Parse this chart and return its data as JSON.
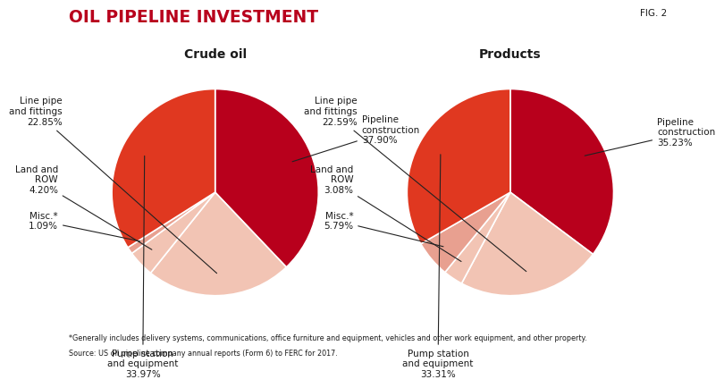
{
  "title": "OIL PIPELINE INVESTMENT",
  "fig_label": "FIG. 2",
  "crude_oil_title": "Crude oil",
  "products_title": "Products",
  "crude_oil": {
    "values": [
      37.9,
      22.85,
      4.2,
      1.09,
      33.97
    ],
    "colors": [
      "#b8001c",
      "#f2c4b4",
      "#f2c4b4",
      "#e8a090",
      "#e03820"
    ]
  },
  "products": {
    "values": [
      35.23,
      22.59,
      3.08,
      5.79,
      33.31
    ],
    "colors": [
      "#b8001c",
      "#f2c4b4",
      "#f2c4b4",
      "#e8a090",
      "#e03820"
    ]
  },
  "footnote_line1": "*Generally includes delivery systems, communications, office furniture and equipment, vehicles and other work equipment, and other property.",
  "footnote_line2": "Source: US oil pipeline company annual reports (Form 6) to FERC for 2017.",
  "bg_color": "#ffffff",
  "title_color": "#b8001c",
  "text_color": "#1a1a1a"
}
